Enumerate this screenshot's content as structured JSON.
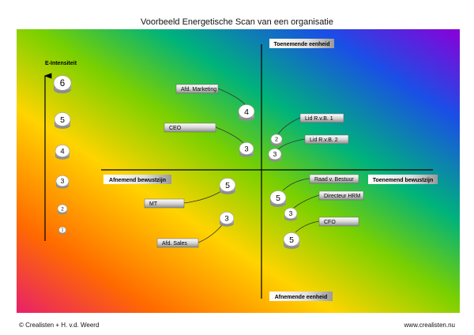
{
  "title": "Voorbeeld Energetische Scan van een organisatie",
  "footer": {
    "left": "© Crealisten + H. v.d. Weerd",
    "right": "www.crealisten.nu"
  },
  "axes": {
    "y_label": "E-Intensiteit",
    "top_label": "Toenemende eenheid",
    "bottom_label": "Afnemende eenheid",
    "left_label": "Afnemend bewustzijn",
    "right_label": "Toenemend bewustzijn"
  },
  "scale": [
    "6",
    "5",
    "4",
    "3",
    "2",
    "1"
  ],
  "items": [
    {
      "id": "afd-marketing",
      "label": "Afd. Marketing",
      "value": "4"
    },
    {
      "id": "ceo",
      "label": "CEO",
      "value": "3"
    },
    {
      "id": "lid-rvb-1",
      "label": "Lid R.v.B. 1",
      "value": "2"
    },
    {
      "id": "lid-rvb-2",
      "label": "Lid R.v.B. 2",
      "value": "3"
    },
    {
      "id": "mt",
      "label": "MT",
      "value": "5"
    },
    {
      "id": "afd-sales",
      "label": "Afd. Sales",
      "value": "3"
    },
    {
      "id": "raad-v-bestuur",
      "label": "Raad v. Bestuur",
      "value": "5"
    },
    {
      "id": "directeur-hrm",
      "label": "Directeur HRM",
      "value": "3"
    },
    {
      "id": "cfo",
      "label": "CFO",
      "value": "5"
    }
  ],
  "colors": {
    "gradient": [
      "#e8206a",
      "#ff6a00",
      "#ffd400",
      "#7ad000",
      "#00b37a",
      "#1a4fe6",
      "#8a00d8"
    ],
    "tag_fill": "#c8c8c8"
  }
}
